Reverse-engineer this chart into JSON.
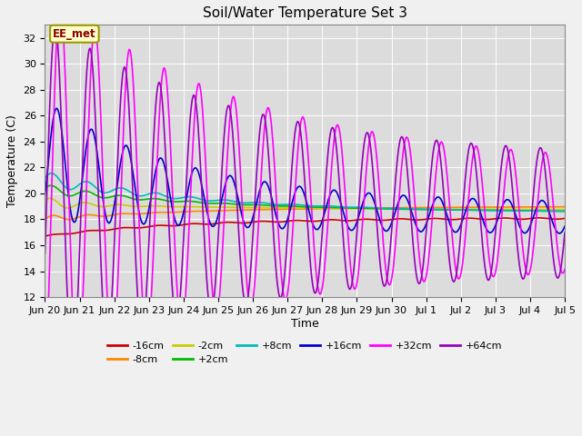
{
  "title": "Soil/Water Temperature Set 3",
  "xlabel": "Time",
  "ylabel": "Temperature (C)",
  "ylim": [
    12,
    33
  ],
  "yticks": [
    12,
    14,
    16,
    18,
    20,
    22,
    24,
    26,
    28,
    30,
    32
  ],
  "annotation_text": "EE_met",
  "annotation_color": "#8b0000",
  "annotation_bg": "#ffffcc",
  "annotation_edge": "#999900",
  "series": {
    "-16cm": {
      "color": "#cc0000",
      "lw": 1.2
    },
    "-8cm": {
      "color": "#ff8800",
      "lw": 1.2
    },
    "-2cm": {
      "color": "#cccc00",
      "lw": 1.2
    },
    "+2cm": {
      "color": "#00bb00",
      "lw": 1.2
    },
    "+8cm": {
      "color": "#00bbbb",
      "lw": 1.2
    },
    "+16cm": {
      "color": "#0000cc",
      "lw": 1.2
    },
    "+32cm": {
      "color": "#ff00ff",
      "lw": 1.2
    },
    "+64cm": {
      "color": "#9900bb",
      "lw": 1.2
    }
  },
  "x_tick_labels": [
    "Jun 20",
    "Jun 21",
    "Jun 22",
    "Jun 23",
    "Jun 24",
    "Jun 25",
    "Jun 26",
    "Jun 27",
    "Jun 28",
    "Jun 29",
    "Jun 30",
    "Jul 1",
    "Jul 2",
    "Jul 3",
    "Jul 4",
    "Jul 5"
  ],
  "n_points": 721
}
